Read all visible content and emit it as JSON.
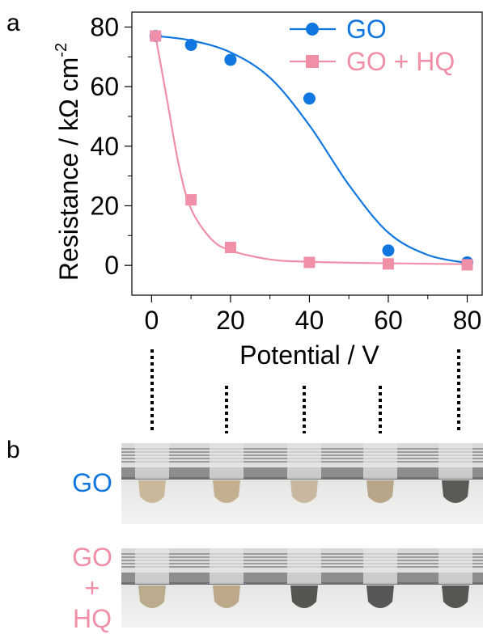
{
  "panels": {
    "a": "a",
    "b": "b"
  },
  "chart_data": {
    "type": "line",
    "xlabel": "Potential / V",
    "ylabel": "Resistance / kΩ cm",
    "ylabel_superscript": "-2",
    "xlim": [
      -5,
      84
    ],
    "ylim": [
      -10,
      85
    ],
    "x_ticks": [
      0,
      20,
      40,
      60,
      80
    ],
    "y_ticks": [
      0,
      20,
      40,
      60,
      80
    ],
    "grid": false,
    "legend_position": "top-right",
    "series": [
      {
        "name": "GO",
        "color": "#1177e0",
        "marker": "circle",
        "points": [
          [
            1,
            77
          ],
          [
            10,
            74
          ],
          [
            20,
            69
          ],
          [
            40,
            56
          ],
          [
            60,
            5
          ],
          [
            80,
            1
          ]
        ],
        "fit": [
          [
            1,
            77
          ],
          [
            10,
            75.5
          ],
          [
            20,
            71.5
          ],
          [
            30,
            63
          ],
          [
            40,
            47
          ],
          [
            50,
            27
          ],
          [
            60,
            11
          ],
          [
            70,
            3.5
          ],
          [
            80,
            0.8
          ]
        ]
      },
      {
        "name": "GO + HQ",
        "color": "#f08fa8",
        "marker": "square",
        "points": [
          [
            1,
            77
          ],
          [
            10,
            22
          ],
          [
            20,
            6
          ],
          [
            40,
            1
          ],
          [
            60,
            0.5
          ],
          [
            80,
            0.2
          ]
        ],
        "fit": [
          [
            1,
            77
          ],
          [
            4,
            55
          ],
          [
            7,
            33
          ],
          [
            10,
            19
          ],
          [
            15,
            9
          ],
          [
            20,
            5
          ],
          [
            30,
            2
          ],
          [
            40,
            1.2
          ],
          [
            60,
            0.7
          ],
          [
            80,
            0.4
          ]
        ]
      }
    ]
  },
  "photo": {
    "row_labels": {
      "go": "GO",
      "gohq_top": "GO",
      "gohq_mid": "+",
      "gohq_bottom": "HQ"
    },
    "go_color": "#1177e0",
    "gohq_color": "#f08fa8",
    "tube_colors_go": [
      "#c9b89a",
      "#c4b08f",
      "#c7b89f",
      "#b8a688",
      "#5a5b57"
    ],
    "tube_colors_gohq": [
      "#bcac8e",
      "#bda88a",
      "#545651",
      "#575855",
      "#555753"
    ]
  }
}
